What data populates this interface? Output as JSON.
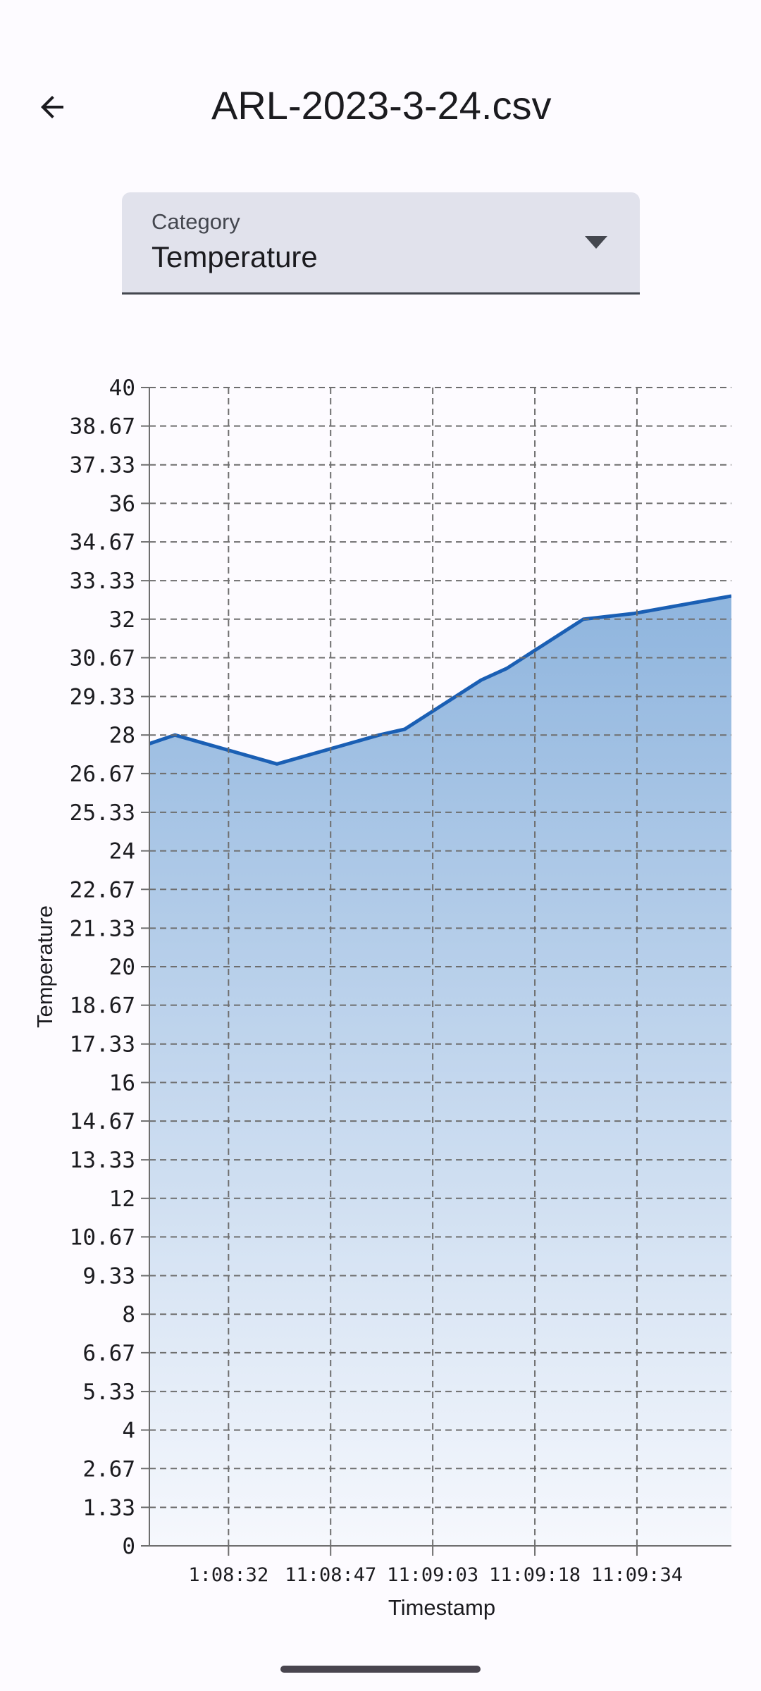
{
  "header": {
    "title": "ARL-2023-3-24.csv"
  },
  "category_select": {
    "label": "Category",
    "value": "Temperature"
  },
  "colors": {
    "line": "#1a5fb4",
    "fill_top": "#8fb5de",
    "fill_bottom": "#f6f8fd",
    "grid": "#6e6e6e"
  },
  "chart_data": {
    "type": "area",
    "xlabel": "Timestamp",
    "ylabel": "Temperature",
    "ylim": [
      0,
      40
    ],
    "grid": true,
    "y_ticks": [
      "0",
      "1.33",
      "2.67",
      "4",
      "5.33",
      "6.67",
      "8",
      "9.33",
      "10.67",
      "12",
      "13.33",
      "14.67",
      "16",
      "17.33",
      "18.67",
      "20",
      "21.33",
      "22.67",
      "24",
      "25.33",
      "26.67",
      "28",
      "29.33",
      "30.67",
      "32",
      "33.33",
      "34.67",
      "36",
      "37.33",
      "38.67",
      "40"
    ],
    "x_ticks": [
      "1:08:32",
      "11:08:47",
      "11:09:03",
      "11:09:18",
      "11:09:34"
    ],
    "x_tick_positions": [
      0.1,
      4.1,
      8.1,
      12.1,
      16.1
    ],
    "xlim": [
      -3,
      19.8
    ],
    "series": [
      {
        "x": [
          -3,
          -2,
          2,
          6,
          7,
          10,
          11,
          14,
          16,
          19.8
        ],
        "values": [
          27.7,
          28.0,
          27.0,
          28.0,
          28.2,
          29.9,
          30.3,
          32.0,
          32.2,
          32.8
        ]
      }
    ]
  }
}
